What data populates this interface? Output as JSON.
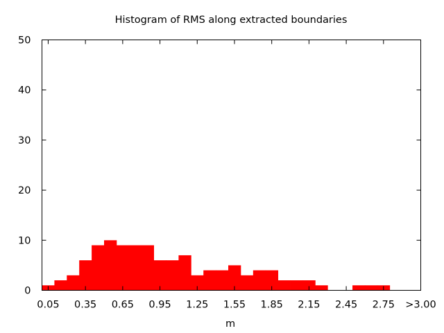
{
  "chart_data": {
    "type": "bar",
    "title": "Histogram of RMS along extracted boundaries",
    "xlabel": "m",
    "ylabel": "",
    "ylim": [
      0,
      50
    ],
    "yticks": [
      0,
      10,
      20,
      30,
      40,
      50
    ],
    "xlim": [
      0.0,
      3.05
    ],
    "xticks": [
      {
        "value": 0.05,
        "label": "0.05"
      },
      {
        "value": 0.35,
        "label": "0.35"
      },
      {
        "value": 0.65,
        "label": "0.65"
      },
      {
        "value": 0.95,
        "label": "0.95"
      },
      {
        "value": 1.25,
        "label": "1.25"
      },
      {
        "value": 1.55,
        "label": "1.55"
      },
      {
        "value": 1.85,
        "label": "1.85"
      },
      {
        "value": 2.15,
        "label": "2.15"
      },
      {
        "value": 2.45,
        "label": "2.45"
      },
      {
        "value": 2.75,
        "label": "2.75"
      },
      {
        "value": 3.05,
        "label": ">3.00"
      }
    ],
    "bin_width": 0.1,
    "bin_centers": [
      0.05,
      0.15,
      0.25,
      0.35,
      0.45,
      0.55,
      0.65,
      0.75,
      0.85,
      0.95,
      1.05,
      1.15,
      1.25,
      1.35,
      1.45,
      1.55,
      1.65,
      1.75,
      1.85,
      1.95,
      2.05,
      2.15,
      2.25,
      2.35,
      2.45,
      2.55,
      2.65,
      2.75,
      2.85,
      2.95,
      3.05
    ],
    "values": [
      1,
      2,
      3,
      6,
      9,
      10,
      9,
      9,
      9,
      6,
      6,
      7,
      3,
      4,
      4,
      5,
      3,
      4,
      4,
      2,
      2,
      2,
      1,
      0,
      0,
      1,
      1,
      1,
      0,
      0,
      0
    ],
    "bar_color": "#ff0000",
    "grid": false,
    "legend": "none"
  }
}
